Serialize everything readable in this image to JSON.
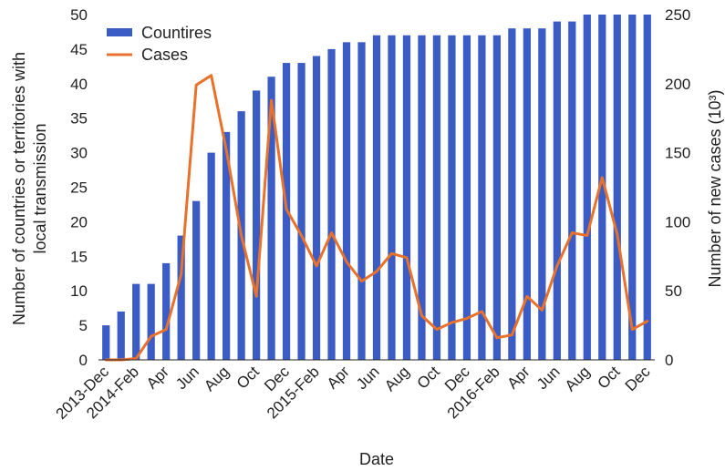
{
  "chart_data": {
    "type": "bar",
    "x_tick_labels": [
      "2013-Dec",
      "2014-Feb",
      "Apr",
      "Jun",
      "Aug",
      "Oct",
      "Dec",
      "2015-Feb",
      "Apr",
      "Jun",
      "Aug",
      "Oct",
      "Dec",
      "2016-Feb",
      "Apr",
      "Jun",
      "Aug",
      "Oct",
      "Dec"
    ],
    "months": [
      "2013-12",
      "2014-01",
      "2014-02",
      "2014-03",
      "2014-04",
      "2014-05",
      "2014-06",
      "2014-07",
      "2014-08",
      "2014-09",
      "2014-10",
      "2014-11",
      "2014-12",
      "2015-01",
      "2015-02",
      "2015-03",
      "2015-04",
      "2015-05",
      "2015-06",
      "2015-07",
      "2015-08",
      "2015-09",
      "2015-10",
      "2015-11",
      "2015-12",
      "2016-01",
      "2016-02",
      "2016-03",
      "2016-04",
      "2016-05",
      "2016-06",
      "2016-07",
      "2016-08",
      "2016-09",
      "2016-10",
      "2016-11",
      "2016-12"
    ],
    "series": [
      {
        "name": "Countires",
        "kind": "bar",
        "axis": "left",
        "color": "#3b5cc4",
        "values": [
          5,
          7,
          11,
          11,
          14,
          18,
          23,
          30,
          33,
          36,
          39,
          41,
          43,
          43,
          44,
          45,
          46,
          46,
          47,
          47,
          47,
          47,
          47,
          47,
          47,
          47,
          47,
          48,
          48,
          48,
          49,
          49,
          50,
          50,
          50,
          50,
          50
        ]
      },
      {
        "name": "Cases",
        "kind": "line",
        "axis": "right",
        "color": "#e8722c",
        "values": [
          0,
          0,
          1,
          17,
          22,
          62,
          199,
          206,
          152,
          90,
          46,
          188,
          109,
          90,
          68,
          92,
          71,
          57,
          64,
          77,
          74,
          32,
          22,
          27,
          30,
          35,
          16,
          18,
          46,
          36,
          68,
          92,
          90,
          132,
          91,
          22,
          28
        ]
      }
    ],
    "ylabel_left": "Number of countries or territories with local transmission",
    "ylabel_right": "Number of new cases (10³)",
    "xlabel": "Date",
    "ylim_left": [
      0,
      50
    ],
    "ylim_right": [
      0,
      250
    ],
    "yticks_left": [
      0,
      5,
      10,
      15,
      20,
      25,
      30,
      35,
      40,
      45,
      50
    ],
    "yticks_right": [
      0,
      50,
      100,
      150,
      200,
      250
    ],
    "grid": false,
    "legend_position": "top-left"
  }
}
